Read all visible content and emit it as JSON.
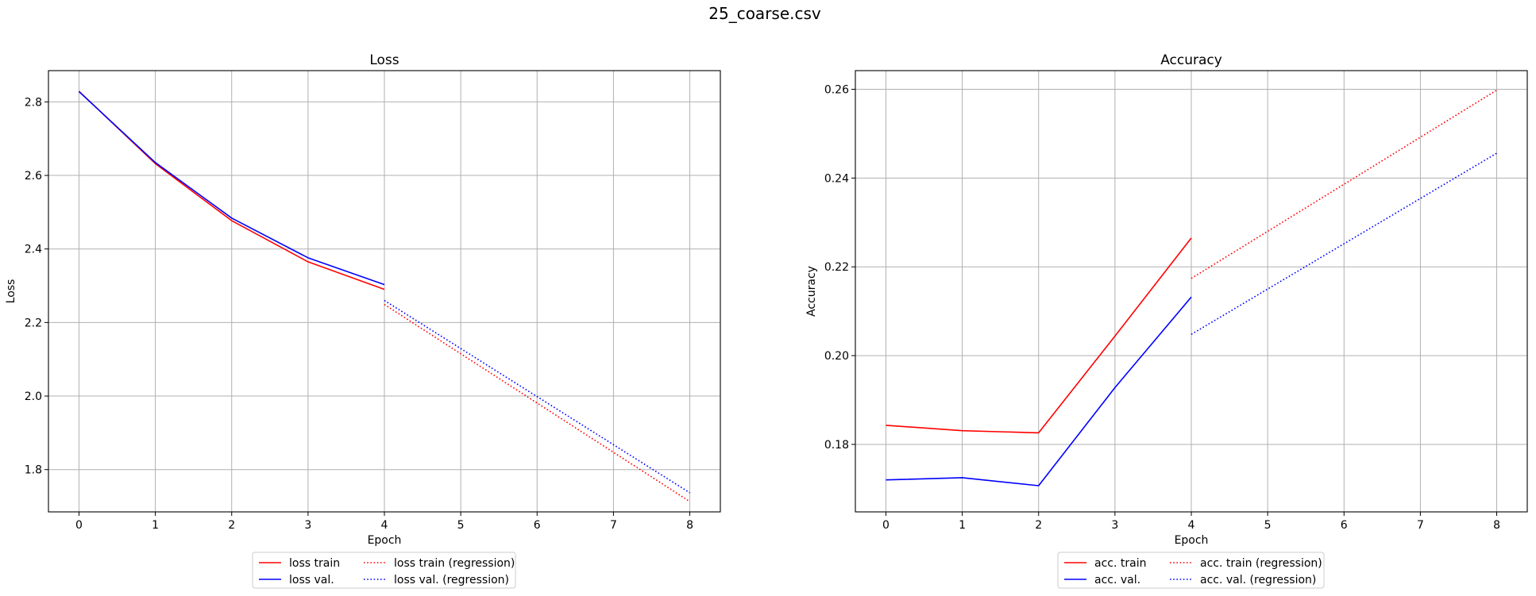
{
  "suptitle": "25_coarse.csv",
  "chart_data": [
    {
      "type": "line",
      "title": "Loss",
      "xlabel": "Epoch",
      "ylabel": "Loss",
      "xlim": [
        -0.4,
        8.4
      ],
      "ylim": [
        1.685,
        2.885
      ],
      "xticks": [
        0,
        1,
        2,
        3,
        4,
        5,
        6,
        7,
        8
      ],
      "xtick_labels": [
        "0",
        "1",
        "2",
        "3",
        "4",
        "5",
        "6",
        "7",
        "8"
      ],
      "yticks": [
        1.8,
        2.0,
        2.2,
        2.4,
        2.6,
        2.8
      ],
      "ytick_labels": [
        "1.8",
        "2.0",
        "2.2",
        "2.4",
        "2.6",
        "2.8"
      ],
      "grid": true,
      "legend": "below",
      "series": [
        {
          "name": "loss train",
          "color": "#ff0000",
          "style": "solid",
          "x": [
            0,
            1,
            2,
            3,
            4
          ],
          "y": [
            2.829,
            2.632,
            2.477,
            2.365,
            2.29
          ]
        },
        {
          "name": "loss val.",
          "color": "#0000ff",
          "style": "solid",
          "x": [
            0,
            1,
            2,
            3,
            4
          ],
          "y": [
            2.828,
            2.635,
            2.484,
            2.376,
            2.303
          ]
        },
        {
          "name": "loss train (regression)",
          "color": "#ff0000",
          "style": "dotted",
          "x": [
            4,
            8
          ],
          "y": [
            2.249,
            1.713
          ]
        },
        {
          "name": "loss val. (regression)",
          "color": "#0000ff",
          "style": "dotted",
          "x": [
            4,
            8
          ],
          "y": [
            2.26,
            1.737
          ]
        }
      ]
    },
    {
      "type": "line",
      "title": "Accuracy",
      "xlabel": "Epoch",
      "ylabel": "Accuracy",
      "xlim": [
        -0.4,
        8.4
      ],
      "ylim": [
        0.1648,
        0.2642
      ],
      "xticks": [
        0,
        1,
        2,
        3,
        4,
        5,
        6,
        7,
        8
      ],
      "xtick_labels": [
        "0",
        "1",
        "2",
        "3",
        "4",
        "5",
        "6",
        "7",
        "8"
      ],
      "yticks": [
        0.18,
        0.2,
        0.22,
        0.24,
        0.26
      ],
      "ytick_labels": [
        "0.18",
        "0.20",
        "0.22",
        "0.24",
        "0.26"
      ],
      "grid": true,
      "legend": "below",
      "series": [
        {
          "name": "acc. train",
          "color": "#ff0000",
          "style": "solid",
          "x": [
            0,
            1,
            2,
            3,
            4
          ],
          "y": [
            0.1843,
            0.1831,
            0.1826,
            0.2044,
            0.2265
          ]
        },
        {
          "name": "acc. val.",
          "color": "#0000ff",
          "style": "solid",
          "x": [
            0,
            1,
            2,
            3,
            4
          ],
          "y": [
            0.172,
            0.1725,
            0.1707,
            0.1928,
            0.2132
          ]
        },
        {
          "name": "acc. train (regression)",
          "color": "#ff0000",
          "style": "dotted",
          "x": [
            4,
            8
          ],
          "y": [
            0.2174,
            0.2598
          ]
        },
        {
          "name": "acc. val. (regression)",
          "color": "#0000ff",
          "style": "dotted",
          "x": [
            4,
            8
          ],
          "y": [
            0.2048,
            0.2456
          ]
        }
      ]
    }
  ]
}
